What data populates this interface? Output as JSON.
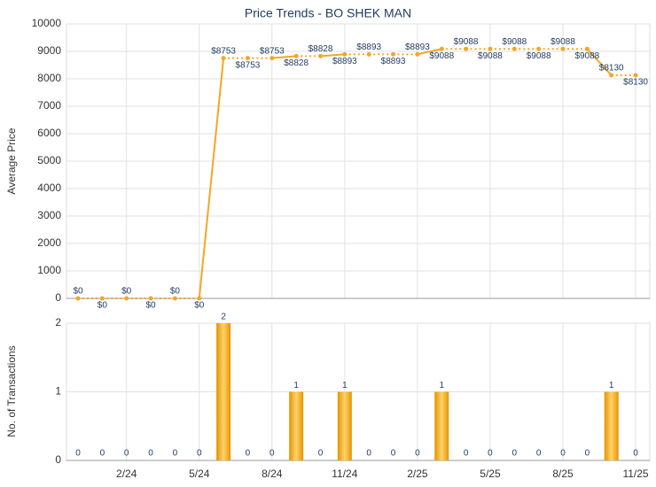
{
  "chart_data": [
    {
      "type": "line",
      "title": "Price Trends - BO SHEK MAN",
      "y_label": "Average Price",
      "color": "#f5a623",
      "values": [
        0,
        0,
        0,
        0,
        0,
        0,
        8753,
        8753,
        8753,
        8828,
        8828,
        8893,
        8893,
        8893,
        8893,
        9088,
        9088,
        9088,
        9088,
        9088,
        9088,
        9088,
        8130,
        8130
      ],
      "value_labels": [
        "$0",
        "$0",
        "$0",
        "$0",
        "$0",
        "$0",
        "$8753",
        "$8753",
        "$8753",
        "$8828",
        "$8828",
        "$8893",
        "$8893",
        "$8893",
        "$8893",
        "$9088",
        "$9088",
        "$9088",
        "$9088",
        "$9088",
        "$9088",
        "$9088",
        "$8130",
        "$8130"
      ],
      "ylim": [
        0,
        10000
      ],
      "yticks": [
        0,
        1000,
        2000,
        3000,
        4000,
        5000,
        6000,
        7000,
        8000,
        9000,
        10000
      ],
      "grid": true
    },
    {
      "type": "bar",
      "y_label": "No. of Transactions",
      "color": "#f0a30a",
      "categories": [
        null,
        null,
        "2/24",
        null,
        null,
        "5/24",
        null,
        null,
        "8/24",
        null,
        null,
        "11/24",
        null,
        null,
        "2/25",
        null,
        null,
        "5/25",
        null,
        null,
        "8/25",
        null,
        null,
        "11/25"
      ],
      "values": [
        0,
        0,
        0,
        0,
        0,
        0,
        2,
        0,
        0,
        1,
        0,
        1,
        0,
        0,
        0,
        1,
        0,
        0,
        0,
        0,
        0,
        0,
        1,
        0
      ],
      "ylim": [
        0,
        2
      ],
      "yticks": [
        0,
        1,
        2
      ],
      "grid": true
    }
  ]
}
